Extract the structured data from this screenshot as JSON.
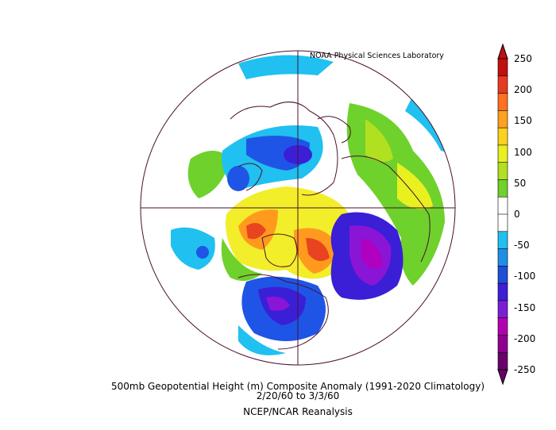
{
  "credit": "NOAA Physical Sciences Laboratory",
  "caption": {
    "title": "500mb Geopotential Height (m) Composite Anomaly (1991-2020 Climatology)",
    "dates": "2/20/60   to 3/3/60",
    "source": "NCEP/NCAR Reanalysis"
  },
  "colorbar": {
    "ticks": [
      "250",
      "200",
      "150",
      "100",
      "50",
      "0",
      "-50",
      "-100",
      "-150",
      "-200",
      "-250"
    ],
    "colors": [
      "#6a006a",
      "#8f008f",
      "#b100b1",
      "#7a1fd6",
      "#3d1fd6",
      "#1f4fd6",
      "#1f8fe6",
      "#20c0f0",
      "#ffffff",
      "#ffffff",
      "#6fd12b",
      "#b0e020",
      "#e8f020",
      "#ffd020",
      "#ffa020",
      "#ff7020",
      "#e83a20",
      "#c01010"
    ],
    "colors_desc": "bottom-to-top, purple negative to red positive"
  },
  "colors": {
    "border": "#4a1030",
    "red": "#e84420",
    "orange": "#ff9a1f",
    "yellow": "#f2ee2a",
    "green": "#6fd12b",
    "lightblue": "#20c0f0",
    "blue": "#1f55e6",
    "darkblue": "#2a1fd0",
    "purple": "#8a15d6",
    "magenta": "#b000c0"
  }
}
